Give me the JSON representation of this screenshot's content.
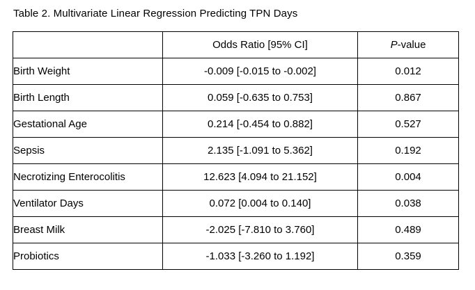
{
  "caption": "Table 2. Multivariate Linear Regression Predicting TPN Days",
  "header": {
    "col1": "",
    "col2": "Odds Ratio [95% CI]",
    "col3_italic": "P",
    "col3_rest": "-value"
  },
  "rows": [
    {
      "variable": "Birth Weight",
      "odds_ratio": "-0.009 [-0.015 to -0.002]",
      "p_value": "0.012",
      "significant": true
    },
    {
      "variable": "Birth Length",
      "odds_ratio": "0.059 [-0.635 to 0.753]",
      "p_value": "0.867",
      "significant": false
    },
    {
      "variable": "Gestational Age",
      "odds_ratio": "0.214 [-0.454 to 0.882]",
      "p_value": "0.527",
      "significant": false
    },
    {
      "variable": "Sepsis",
      "odds_ratio": "2.135 [-1.091 to 5.362]",
      "p_value": "0.192",
      "significant": false
    },
    {
      "variable": "Necrotizing Enterocolitis",
      "odds_ratio": "12.623 [4.094 to 21.152]",
      "p_value": "0.004",
      "significant": true
    },
    {
      "variable": "Ventilator Days",
      "odds_ratio": "0.072 [0.004 to 0.140]",
      "p_value": "0.038",
      "significant": true
    },
    {
      "variable": "Breast Milk",
      "odds_ratio": "-2.025 [-7.810 to 3.760]",
      "p_value": "0.489",
      "significant": false
    },
    {
      "variable": "Probiotics",
      "odds_ratio": "-1.033 [-3.260 to 1.192]",
      "p_value": "0.359",
      "significant": false
    }
  ]
}
